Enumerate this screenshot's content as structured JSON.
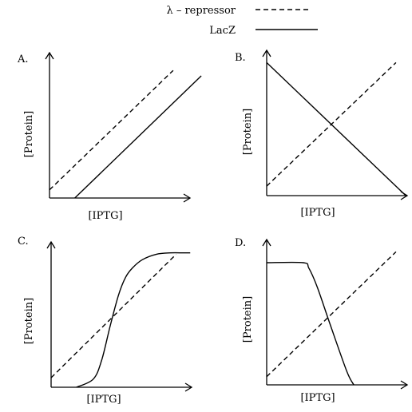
{
  "legend": {
    "repressor_label": "λ – repressor",
    "lacz_label": "LacZ"
  },
  "chart_data": [
    {
      "type": "line",
      "panel_label": "A.",
      "xlabel": "[IPTG]",
      "ylabel": "[Protein]",
      "xlim": [
        0,
        1
      ],
      "ylim": [
        0,
        1
      ],
      "series": [
        {
          "name": "λ – repressor",
          "style": "dashed",
          "x": [
            0,
            0.88
          ],
          "y": [
            0.06,
            0.94
          ]
        },
        {
          "name": "LacZ",
          "style": "solid",
          "x": [
            0.18,
            1.08
          ],
          "y": [
            0,
            0.9
          ]
        }
      ]
    },
    {
      "type": "line",
      "panel_label": "B.",
      "xlabel": "[IPTG]",
      "ylabel": "[Protein]",
      "xlim": [
        0,
        1
      ],
      "ylim": [
        0,
        1
      ],
      "series": [
        {
          "name": "λ – repressor",
          "style": "dashed",
          "x": [
            0,
            0.92
          ],
          "y": [
            0.07,
            0.98
          ]
        },
        {
          "name": "LacZ",
          "style": "solid",
          "x": [
            0,
            0.99
          ],
          "y": [
            0.98,
            0
          ]
        }
      ]
    },
    {
      "type": "line",
      "panel_label": "C.",
      "xlabel": "[IPTG]",
      "ylabel": "[Protein]",
      "xlim": [
        0,
        1
      ],
      "ylim": [
        0,
        1
      ],
      "series": [
        {
          "name": "λ – repressor",
          "style": "dashed",
          "x": [
            0,
            0.89
          ],
          "y": [
            0.07,
            0.98
          ]
        },
        {
          "name": "LacZ",
          "style": "solid",
          "x": [
            0.18,
            0.3,
            0.36,
            0.42,
            0.48,
            0.53,
            0.58,
            0.65,
            0.75,
            0.85,
            0.94,
            0.99
          ],
          "y": [
            0.0,
            0.06,
            0.2,
            0.45,
            0.68,
            0.81,
            0.88,
            0.94,
            0.98,
            0.99,
            0.99,
            0.99
          ]
        }
      ]
    },
    {
      "type": "line",
      "panel_label": "D.",
      "xlabel": "[IPTG]",
      "ylabel": "[Protein]",
      "xlim": [
        0,
        1
      ],
      "ylim": [
        0,
        1
      ],
      "series": [
        {
          "name": "λ – repressor",
          "style": "dashed",
          "x": [
            0,
            0.92
          ],
          "y": [
            0.06,
            0.98
          ]
        },
        {
          "name": "LacZ",
          "style": "solid",
          "x": [
            0,
            0.26,
            0.3,
            0.36,
            0.45,
            0.57,
            0.62
          ],
          "y": [
            0.9,
            0.9,
            0.86,
            0.72,
            0.45,
            0.1,
            0
          ]
        }
      ]
    }
  ]
}
